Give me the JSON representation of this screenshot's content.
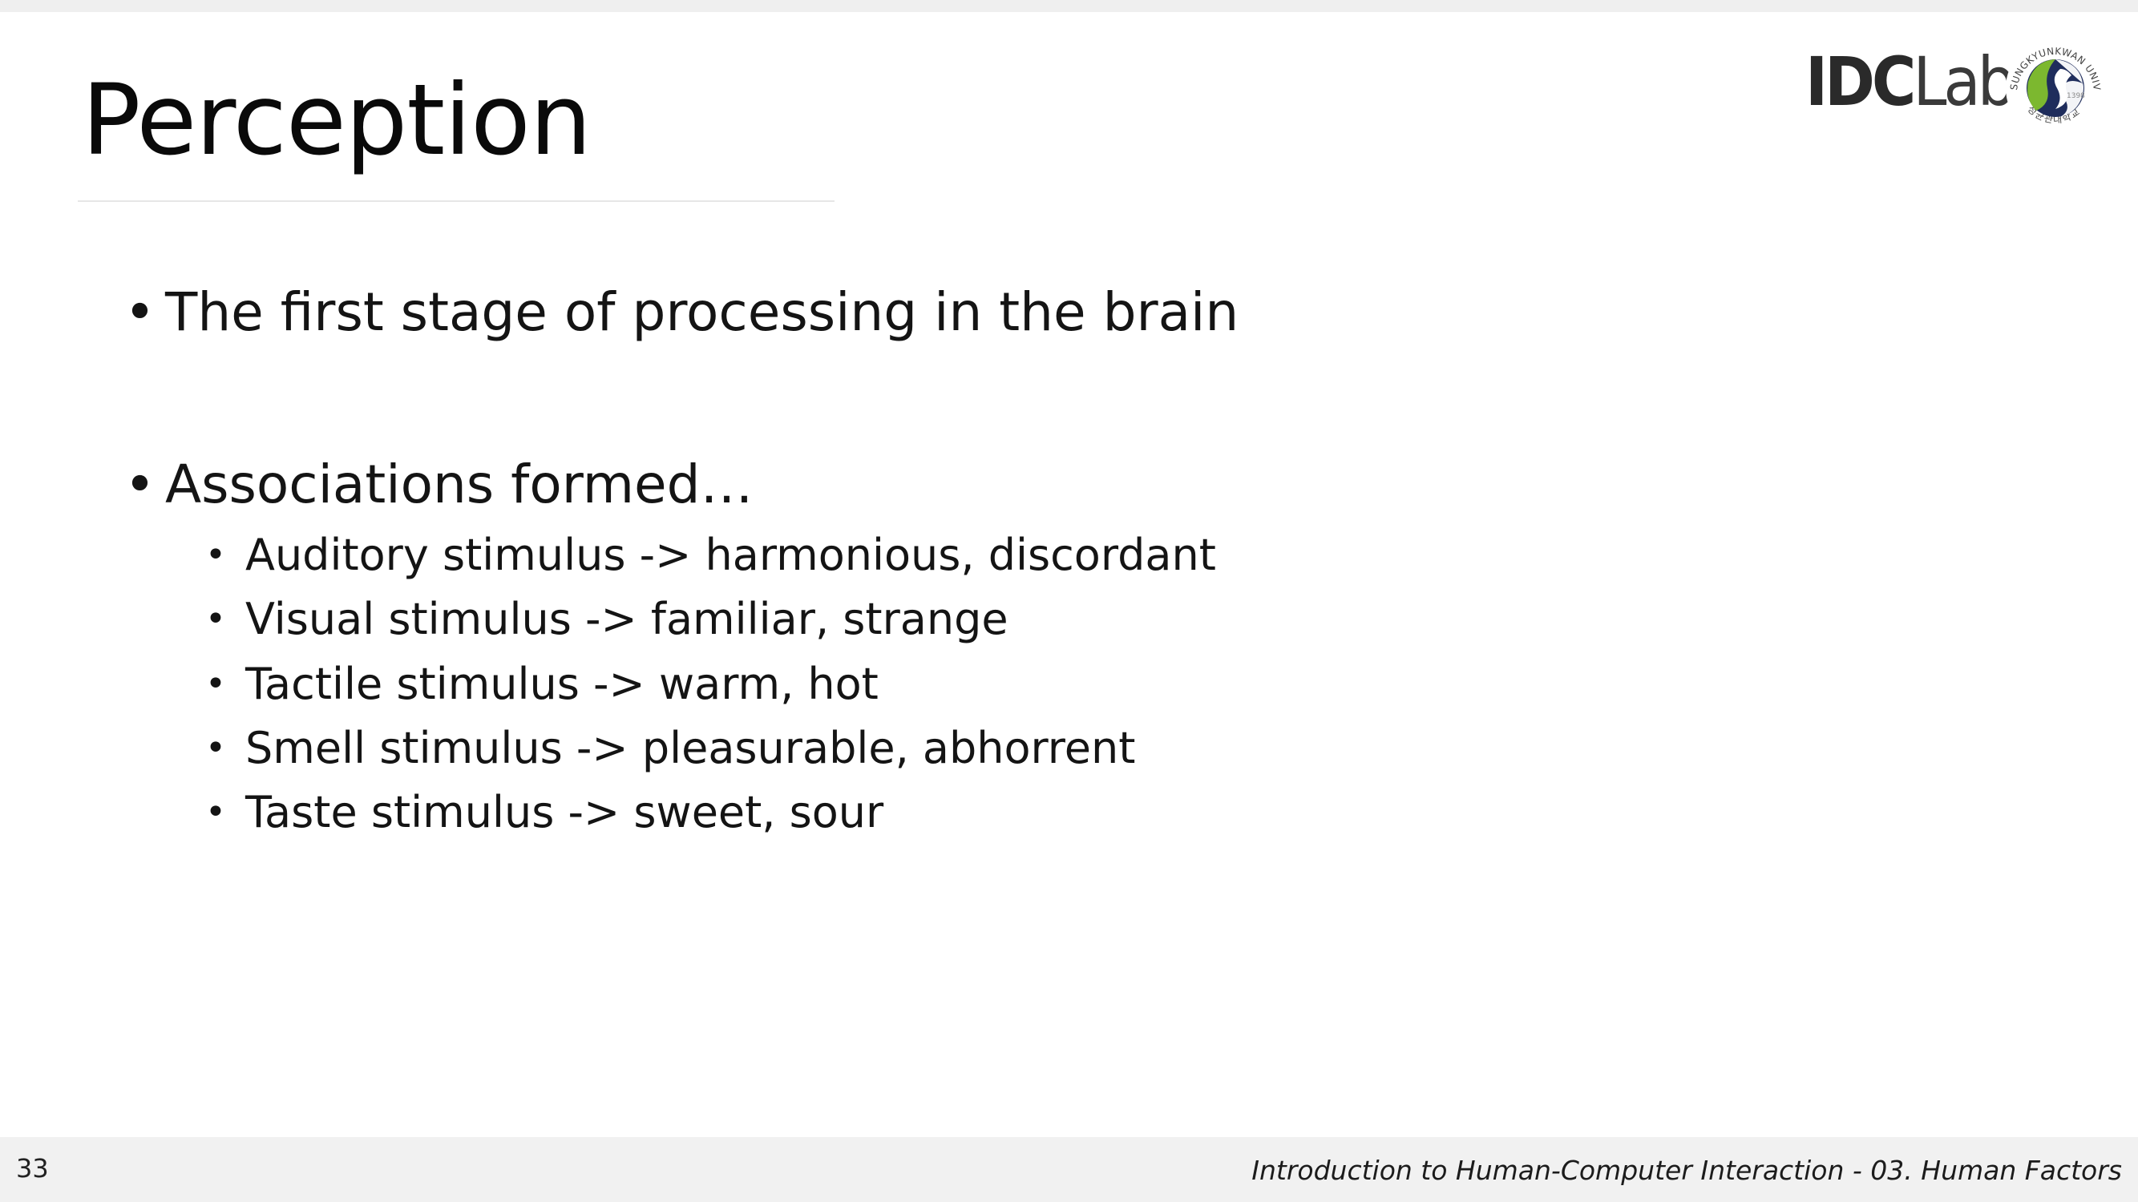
{
  "slide": {
    "title": "Perception",
    "bullets": [
      {
        "text": "The first stage of processing in the brain",
        "sub": []
      },
      {
        "text": "Associations formed…",
        "sub": [
          "Auditory stimulus -> harmonious, discordant",
          "Visual stimulus -> familiar, strange",
          "Tactile stimulus -> warm, hot",
          "Smell stimulus -> pleasurable, abhorrent",
          "Taste stimulus -> sweet, sour"
        ]
      }
    ],
    "bullet_glyph": "•"
  },
  "logo": {
    "lab_bold": "IDC",
    "lab_light": "Lab",
    "seal_text": "SUNGKYUNKWAN UNIVERSITY",
    "seal_year": "1398",
    "seal_korean": "성균관대학교",
    "icon": "university-seal-icon"
  },
  "footer": {
    "page_number": "33",
    "course_title": "Introduction to Human-Computer Interaction - 03. Human Factors"
  },
  "colors": {
    "footer_bg": "#f1f1f1",
    "seal_green": "#7cb82f",
    "seal_navy": "#1f2d5c"
  }
}
